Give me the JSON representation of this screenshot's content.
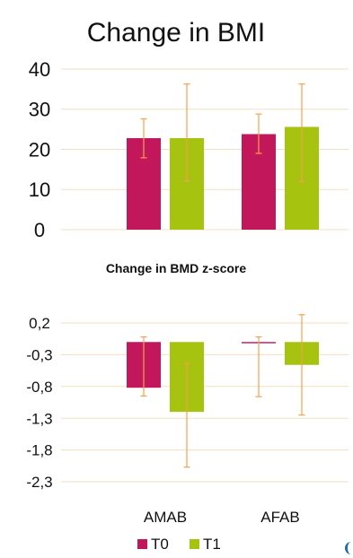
{
  "colors": {
    "t0": "#C2185B",
    "t1": "#A6C30F",
    "error": "#F6A04D",
    "grid": "#F3DFC0",
    "text": "#111111"
  },
  "chart_data": [
    {
      "type": "bar",
      "title": "Change in BMI",
      "categories": [
        "AMAB",
        "AFAB"
      ],
      "series": [
        {
          "name": "T0",
          "values": [
            22.8,
            23.8
          ],
          "error_low": [
            17.9,
            19.0
          ],
          "error_high": [
            27.6,
            28.8
          ]
        },
        {
          "name": "T1",
          "values": [
            22.8,
            25.6
          ],
          "error_low": [
            12.1,
            12.0
          ],
          "error_high": [
            36.3,
            36.3
          ]
        }
      ],
      "ylim": [
        0,
        40
      ],
      "yticks": [
        0,
        10,
        20,
        30,
        40
      ],
      "ytick_labels": [
        "0",
        "10",
        "20",
        "30",
        "40"
      ],
      "grid": true
    },
    {
      "type": "bar",
      "title": "Change in BMD z-score",
      "categories": [
        "AMAB",
        "AFAB"
      ],
      "series": [
        {
          "name": "T0",
          "values": [
            -0.82,
            -0.12
          ],
          "error_low": [
            -0.95,
            -0.96
          ],
          "error_high": [
            -0.02,
            -0.02
          ]
        },
        {
          "name": "T1",
          "values": [
            -1.2,
            -0.46
          ],
          "error_low": [
            -2.07,
            -1.25
          ],
          "error_high": [
            -0.44,
            0.33
          ]
        }
      ],
      "ylim": [
        -2.3,
        0.2
      ],
      "yticks": [
        0.2,
        -0.3,
        -0.8,
        -1.3,
        -1.8,
        -2.3
      ],
      "ytick_labels": [
        "0,2",
        "-0,3",
        "-0,8",
        "-1,3",
        "-1,8",
        "-2,3"
      ],
      "grid": true,
      "legend": "bottom-center"
    }
  ]
}
